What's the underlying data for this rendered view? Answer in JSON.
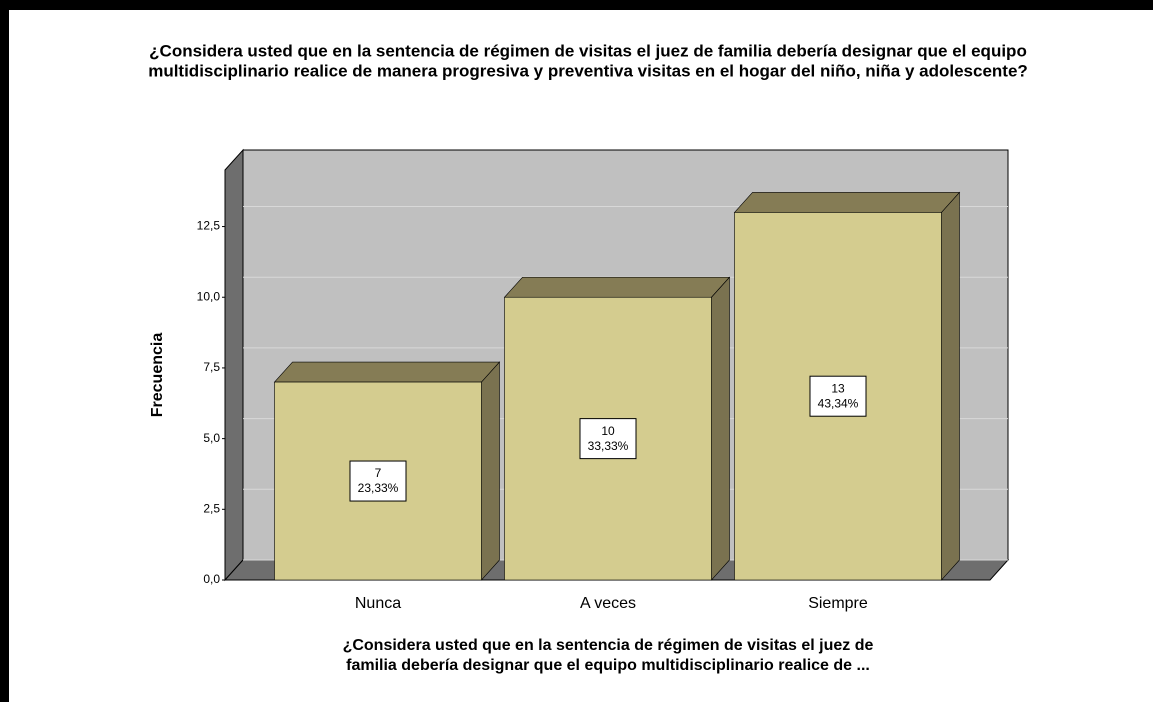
{
  "chart_data": {
    "type": "bar3d",
    "title": [
      "¿Considera usted que en la sentencia de régimen de visitas el juez de familia debería designar que el equipo",
      "multidisciplinario realice de manera progresiva y preventiva visitas en el hogar del niño, niña y adolescente?"
    ],
    "x_label": [
      "¿Considera usted que en la sentencia de régimen de visitas el juez de",
      "familia debería designar que el equipo multidisciplinario realice de ..."
    ],
    "y_label": "Frecuencia",
    "categories": [
      "Nunca",
      "A veces",
      "Siempre"
    ],
    "values": [
      7,
      10,
      13
    ],
    "percents": [
      23.33,
      33.33,
      43.34
    ],
    "percent_labels": [
      "23,33%",
      "33,33%",
      "43,34%"
    ],
    "color": "#d4cc8f",
    "ylim": [
      0,
      14.5
    ],
    "yticks": [
      {
        "value": 0,
        "label": "0,0"
      },
      {
        "value": 2.5,
        "label": "2,5"
      },
      {
        "value": 5,
        "label": "5,0"
      },
      {
        "value": 7.5,
        "label": "7,5"
      },
      {
        "value": 10,
        "label": "10,0"
      },
      {
        "value": 12.5,
        "label": "12,5"
      }
    ],
    "grid": true
  }
}
